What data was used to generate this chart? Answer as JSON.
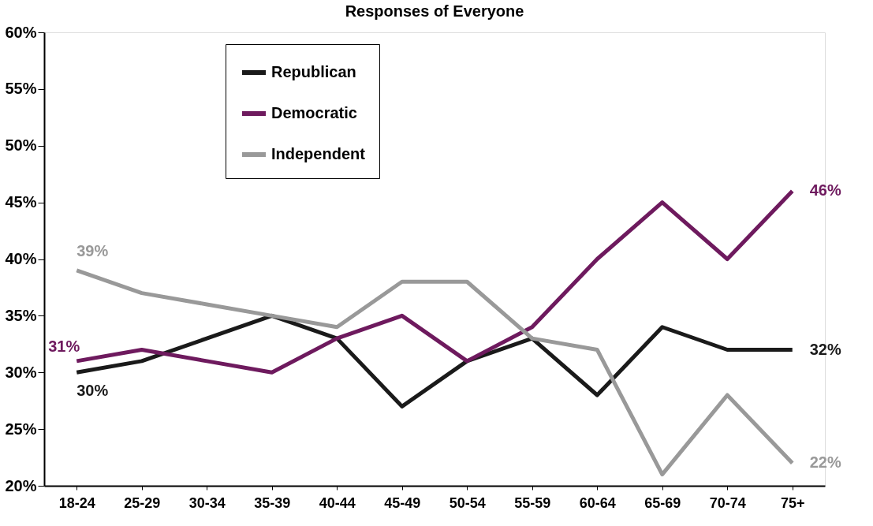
{
  "chart_data": {
    "type": "line",
    "title": "Responses of Everyone",
    "categories": [
      "18-24",
      "25-29",
      "30-34",
      "35-39",
      "40-44",
      "45-49",
      "50-54",
      "55-59",
      "60-64",
      "65-69",
      "70-74",
      "75+"
    ],
    "series": [
      {
        "name": "Republican",
        "color": "#1a1a1a",
        "values": [
          30,
          31,
          33,
          35,
          33,
          27,
          31,
          33,
          28,
          34,
          32,
          32
        ]
      },
      {
        "name": "Democratic",
        "color": "#6e1a5e",
        "values": [
          31,
          32,
          31,
          30,
          33,
          35,
          31,
          34,
          40,
          45,
          40,
          46
        ]
      },
      {
        "name": "Independent",
        "color": "#999999",
        "values": [
          39,
          37,
          36,
          35,
          34,
          38,
          38,
          33,
          32,
          21,
          28,
          22
        ]
      }
    ],
    "ylim": [
      20,
      60
    ],
    "yticks": [
      {
        "value": 20,
        "label": "20%"
      },
      {
        "value": 25,
        "label": "25%"
      },
      {
        "value": 30,
        "label": "30%"
      },
      {
        "value": 35,
        "label": "35%"
      },
      {
        "value": 40,
        "label": "40%"
      },
      {
        "value": 45,
        "label": "45%"
      },
      {
        "value": 50,
        "label": "50%"
      },
      {
        "value": 55,
        "label": "55%"
      },
      {
        "value": 60,
        "label": "60%"
      }
    ],
    "annotations": [
      {
        "text": "39%",
        "x": "18-24",
        "y": 39
      },
      {
        "text": "31%",
        "x": "18-24",
        "y": 31
      },
      {
        "text": "30%",
        "x": "18-24",
        "y": 30
      },
      {
        "text": "46%",
        "x": "75+",
        "y": 46
      },
      {
        "text": "32%",
        "x": "75+",
        "y": 32
      },
      {
        "text": "22%",
        "x": "75+",
        "y": 22
      }
    ],
    "grid": false,
    "legend": "top left",
    "marker": "none",
    "line_style": "solid"
  }
}
